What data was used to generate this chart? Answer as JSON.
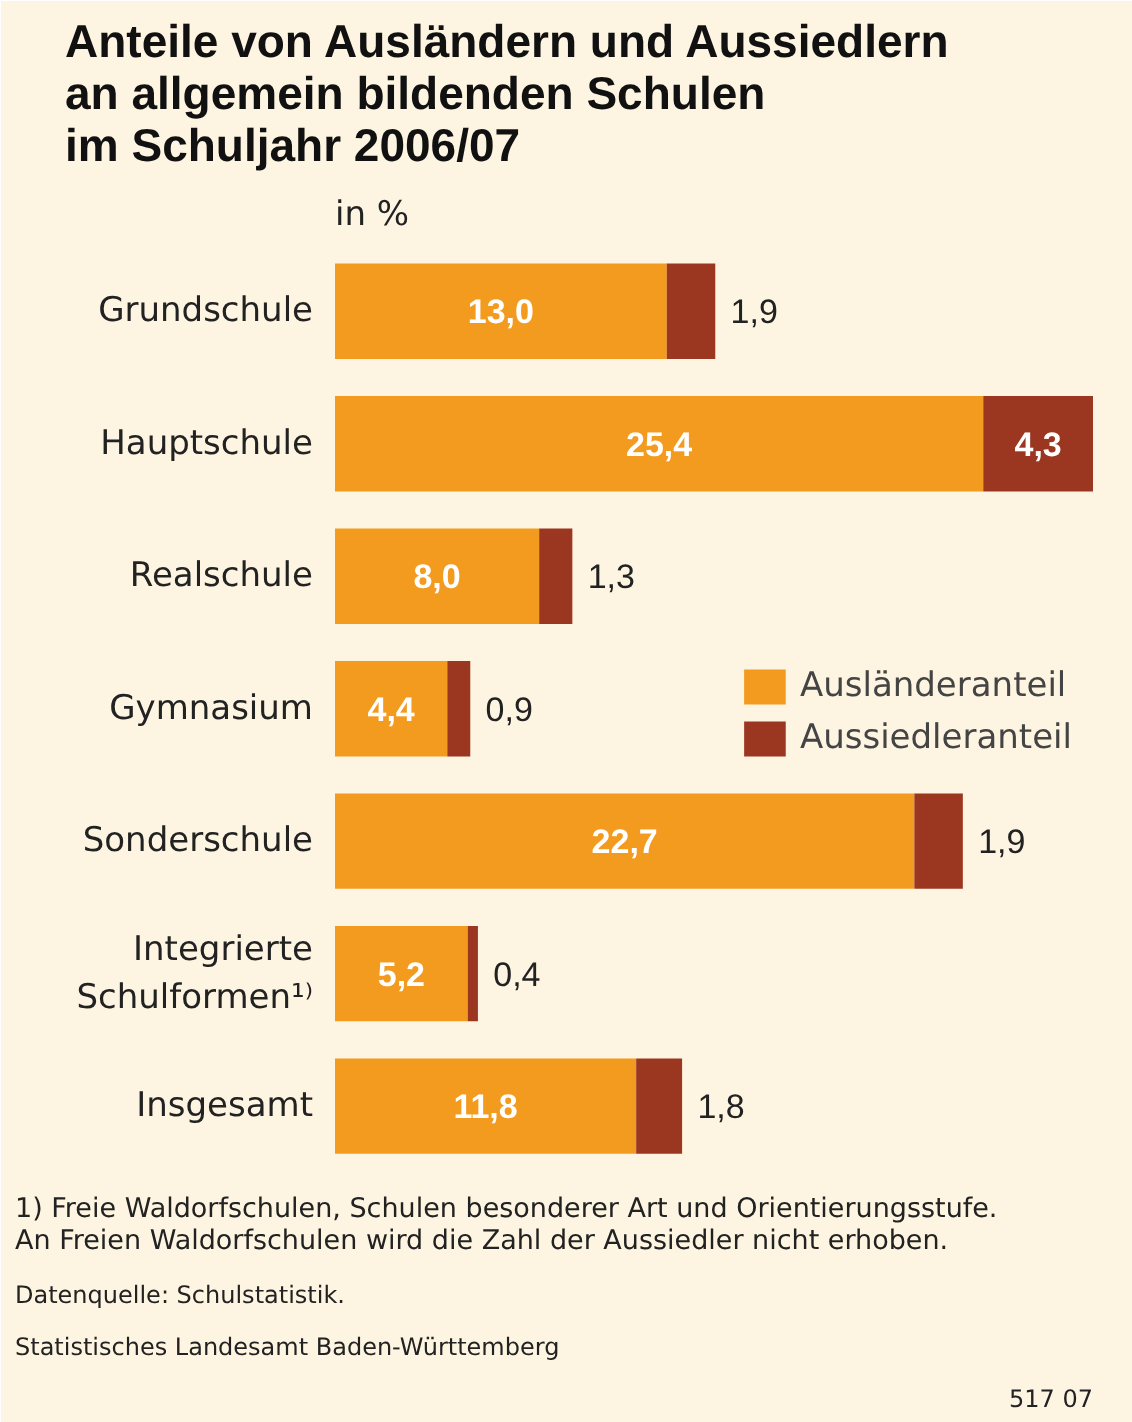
{
  "chart_data": {
    "type": "bar",
    "orientation": "horizontal",
    "stacked": true,
    "title": "Anteile von Ausländern und Aussiedlern\nan allgemein bildenden Schulen\nim Schuljahr 2006/07",
    "categories": [
      "Grundschule",
      "Hauptschule",
      "Realschule",
      "Gymnasium",
      "Sonderschule",
      "Integrierte Schulformen¹⁾",
      "Insgesamt"
    ],
    "series": [
      {
        "name": "Ausländeranteil",
        "color": "#f39b1f",
        "values": [
          13.0,
          25.4,
          8.0,
          4.4,
          22.7,
          5.2,
          11.8
        ],
        "value_labels": [
          "13,0",
          "25,4",
          "8,0",
          "4,4",
          "22,7",
          "5,2",
          "11,8"
        ]
      },
      {
        "name": "Aussiedleranteil",
        "color": "#9b3620",
        "values": [
          1.9,
          4.3,
          1.3,
          0.9,
          1.9,
          0.4,
          1.8
        ],
        "value_labels": [
          "1,9",
          "4,3",
          "1,3",
          "0,9",
          "1,9",
          "0,4",
          "1,8"
        ]
      }
    ],
    "xlim": [
      0,
      29.7
    ],
    "tick_labels": "y",
    "legend": "right",
    "grid": false,
    "annotations": [
      "in %",
      "1) Freie Waldorfschulen, Schulen besonderer Art und Orientierungsstufe.\nAn Freien Waldorfschulen wird die Zahl der Aussiedler nicht erhoben.",
      "Datenquelle: Schulstatistik.",
      "Statistisches Landesamt Baden-Württemberg",
      "517 07"
    ]
  }
}
